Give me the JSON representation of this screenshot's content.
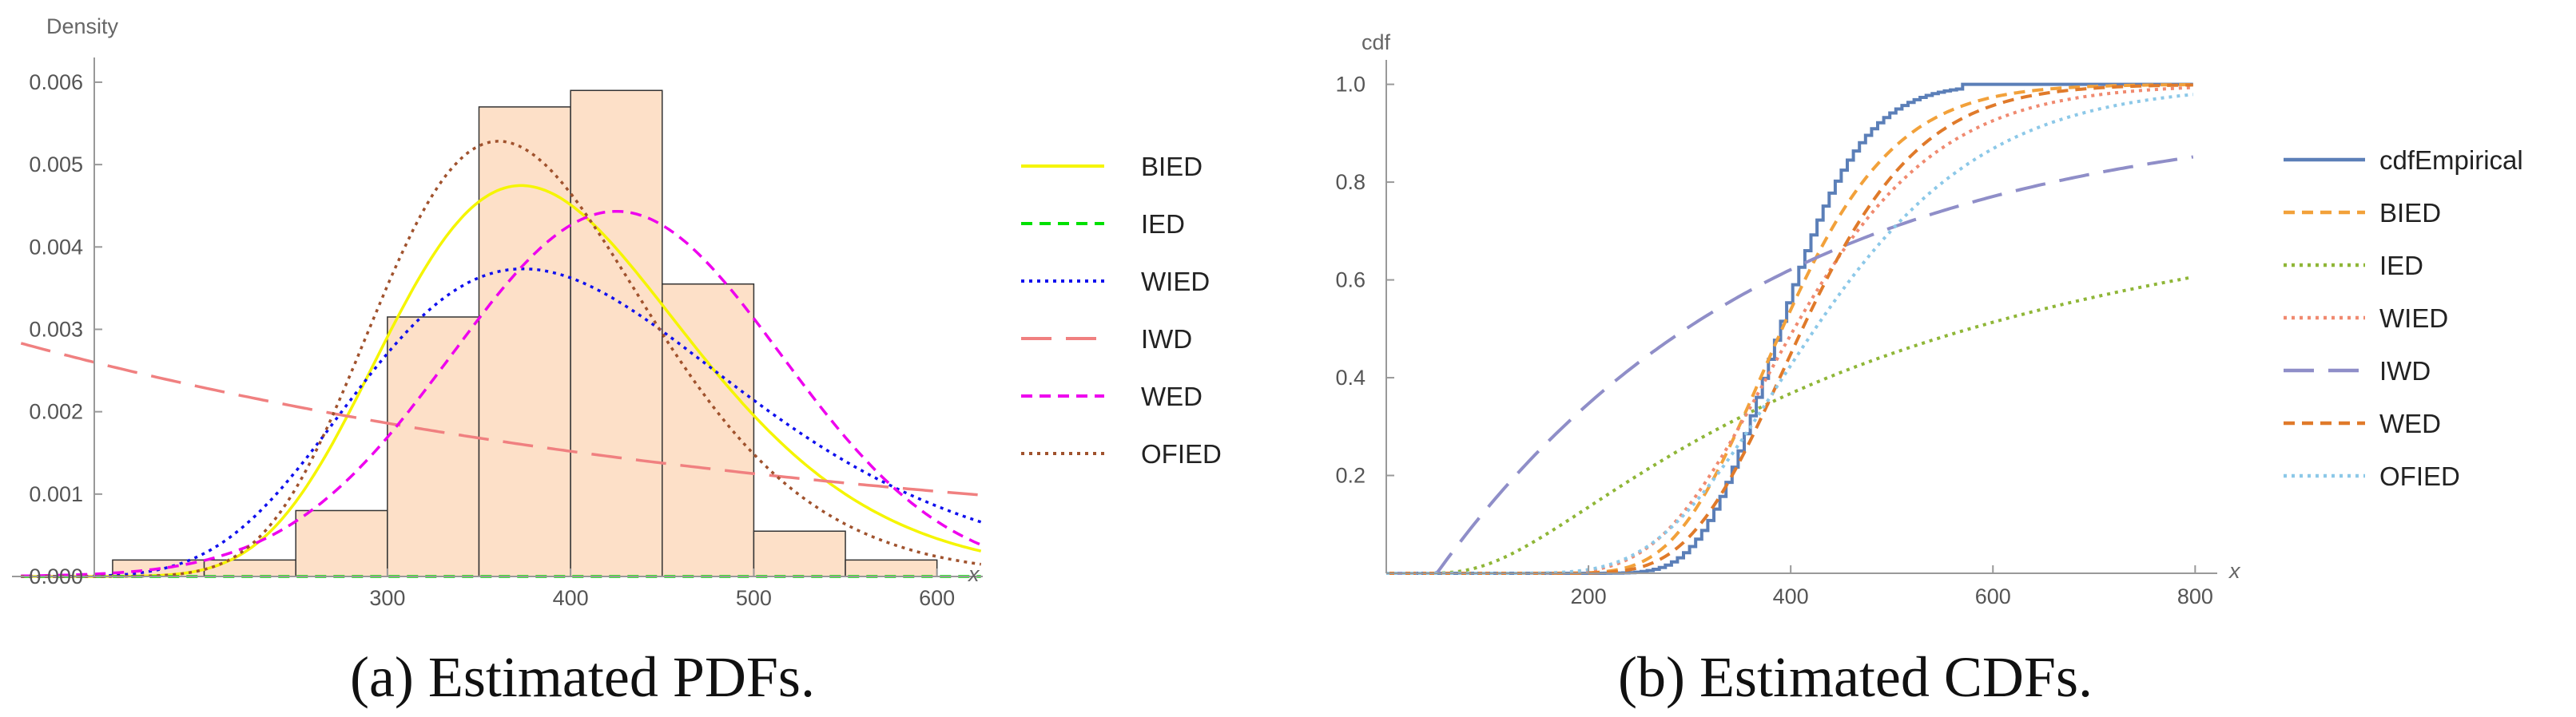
{
  "chart_data": [
    {
      "type": "histogram_with_curves",
      "panel_label": "(a)",
      "caption": "Estimated PDFs.",
      "ylabel": "Density",
      "xlabel": "x",
      "xlim": [
        140,
        625
      ],
      "ylim": [
        0,
        0.0063
      ],
      "x_ticks": [
        "300",
        "400",
        "500",
        "600"
      ],
      "y_ticks": [
        "0.000",
        "0.001",
        "0.002",
        "0.003",
        "0.004",
        "0.005",
        "0.006"
      ],
      "histogram": {
        "bin_edges": [
          150,
          200,
          250,
          300,
          350,
          400,
          450,
          500,
          550,
          600
        ],
        "values": [
          0.0002,
          0.0002,
          0.0008,
          0.00315,
          0.0057,
          0.0059,
          0.00355,
          0.00055,
          0.0002
        ],
        "fill": "#fde0c8"
      },
      "series": [
        {
          "name": "BIED",
          "color": "#f5f500",
          "dash": "solid",
          "model": "lognormal",
          "params": {
            "mu": 5.97,
            "sigma": 0.22
          }
        },
        {
          "name": "IED",
          "color": "#00e000",
          "dash": "dashed",
          "model": "invexp",
          "params": {
            "lambda": 0
          }
        },
        {
          "name": "WIED",
          "color": "#1010ee",
          "dash": "dotted",
          "model": "lognormal",
          "params": {
            "mu": 6.0,
            "sigma": 0.275
          }
        },
        {
          "name": "IWD",
          "color": "#f08080",
          "dash": "longdash",
          "model": "exp",
          "params": {
            "a": 0.0024,
            "b": 0.0023
          }
        },
        {
          "name": "WED",
          "color": "#ee00ee",
          "dash": "dashed",
          "model": "normal",
          "params": {
            "mu": 425,
            "sigma": 90
          }
        },
        {
          "name": "OFIED",
          "color": "#a0522d",
          "dash": "dotted",
          "model": "lognormal",
          "params": {
            "mu": 5.93,
            "sigma": 0.205
          }
        }
      ]
    },
    {
      "type": "line",
      "panel_label": "(b)",
      "caption": "Estimated CDFs.",
      "ylabel": "cdf",
      "xlabel": "x",
      "xlim": [
        0,
        810
      ],
      "ylim": [
        0,
        1.05
      ],
      "x_ticks": [
        "200",
        "400",
        "600",
        "800"
      ],
      "y_ticks": [
        "0.2",
        "0.4",
        "0.6",
        "0.8",
        "1.0"
      ],
      "series": [
        {
          "name": "cdfEmpirical",
          "color": "#5b7fb8",
          "dash": "solid",
          "model": "empirical"
        },
        {
          "name": "BIED",
          "color": "#f2a13a",
          "dash": "dashed",
          "model": "lognormal",
          "params": {
            "mu": 5.97,
            "sigma": 0.22
          }
        },
        {
          "name": "IED",
          "color": "#8fb637",
          "dash": "dotted",
          "model": "invexp",
          "params": {
            "lambda": 400
          }
        },
        {
          "name": "WIED",
          "color": "#f08a70",
          "dash": "dotted",
          "model": "lognormal",
          "params": {
            "mu": 6.0,
            "sigma": 0.275
          }
        },
        {
          "name": "IWD",
          "color": "#8f8ec8",
          "dash": "longdash",
          "model": "weibull",
          "params": {
            "k": 1.0,
            "lambda": 330,
            "shift": 50
          }
        },
        {
          "name": "WED",
          "color": "#e07a2a",
          "dash": "dashed",
          "model": "lognormal",
          "params": {
            "mu": 6.02,
            "sigma": 0.22
          }
        },
        {
          "name": "OFIED",
          "color": "#8cc8e8",
          "dash": "dotted",
          "model": "lognormal",
          "params": {
            "mu": 6.05,
            "sigma": 0.31
          }
        }
      ]
    }
  ]
}
